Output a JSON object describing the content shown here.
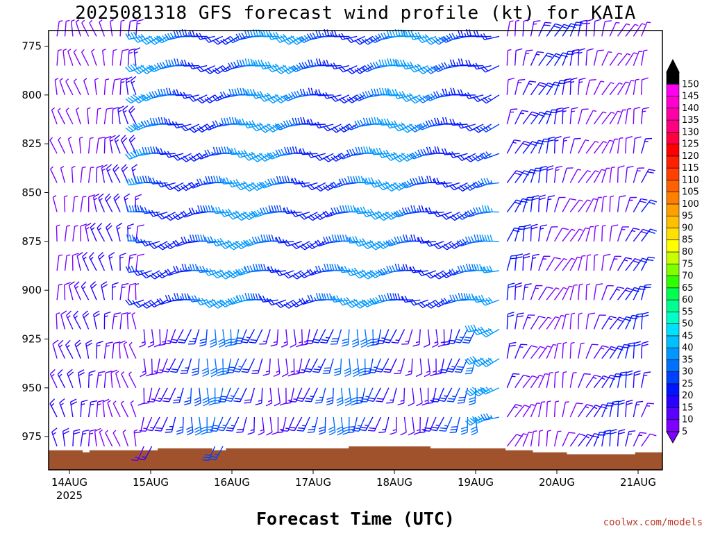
{
  "title": "2025081318 GFS forecast wind profile (kt) for KAIA",
  "xlabel": "Forecast Time (UTC)",
  "credit": "coolwx.com/models",
  "chart_data": {
    "type": "wind-barb",
    "title": "2025081318 GFS forecast wind profile (kt) for KAIA",
    "xlabel": "Forecast Time (UTC)",
    "x_ticks": [
      "14AUG",
      "15AUG",
      "16AUG",
      "17AUG",
      "18AUG",
      "19AUG",
      "20AUG",
      "21AUG"
    ],
    "x_year": "2025",
    "y_ticks": [
      775,
      800,
      825,
      850,
      875,
      900,
      925,
      950,
      975
    ],
    "ylim": [
      992,
      767
    ],
    "colorbar": {
      "levels": [
        5,
        10,
        15,
        20,
        25,
        30,
        35,
        40,
        45,
        50,
        55,
        60,
        65,
        70,
        75,
        80,
        85,
        90,
        95,
        100,
        105,
        110,
        115,
        120,
        125,
        130,
        135,
        140,
        145,
        150
      ],
      "colors": [
        "#7f00ff",
        "#5a00ff",
        "#2a00ff",
        "#0014ff",
        "#0040ff",
        "#0070ff",
        "#0098ff",
        "#00c0ff",
        "#00e0ff",
        "#00ffc8",
        "#00ff90",
        "#00ff50",
        "#30ff00",
        "#80ff00",
        "#c8ff00",
        "#ffff00",
        "#ffe000",
        "#ffc000",
        "#ffa000",
        "#ff8000",
        "#ff6000",
        "#ff4000",
        "#ff2000",
        "#ff0000",
        "#ff0040",
        "#ff0080",
        "#ff00a8",
        "#ff00d0",
        "#ff00f0",
        "#000000"
      ]
    },
    "terrain_color": "#a0522d",
    "surface_pressure": [
      982,
      982,
      982,
      982,
      982,
      983,
      982,
      982,
      982,
      982,
      982,
      982,
      982,
      982,
      982,
      982,
      981,
      981,
      981,
      981,
      981,
      981,
      981,
      981,
      982,
      982,
      981,
      981,
      981,
      981,
      981,
      981,
      981,
      981,
      981,
      981,
      981,
      981,
      981,
      981,
      981,
      981,
      981,
      981,
      980,
      980,
      980,
      980,
      980,
      980,
      980,
      980,
      980,
      980,
      980,
      980,
      981,
      981,
      981,
      981,
      981,
      981,
      981,
      981,
      981,
      981,
      981,
      982,
      982,
      982,
      982,
      983,
      983,
      983,
      983,
      983,
      984,
      984,
      984,
      984,
      984,
      984,
      984,
      984,
      984,
      984,
      983,
      983,
      983,
      983
    ],
    "levels_hpa": [
      770,
      785,
      800,
      815,
      830,
      845,
      860,
      875,
      890,
      905,
      920,
      935,
      950,
      965,
      980
    ],
    "time_steps": 76,
    "time_start_day": 13.75,
    "time_step_days": 0.0972,
    "wind_regimes": [
      {
        "from_day": 13.75,
        "to_day": 14.9,
        "dir_deg": 350,
        "speed_kt": 8
      },
      {
        "from_day": 14.9,
        "to_day": 19.3,
        "dir_deg": 255,
        "speed_kt": 30
      },
      {
        "from_day": 19.3,
        "to_day": 21.25,
        "dir_deg": 20,
        "speed_kt": 12
      }
    ],
    "low_level_regime": {
      "below_hpa": 910,
      "from_day": 14.9,
      "to_day": 19.0,
      "dir_deg": 190,
      "speed_kt": 22
    }
  }
}
